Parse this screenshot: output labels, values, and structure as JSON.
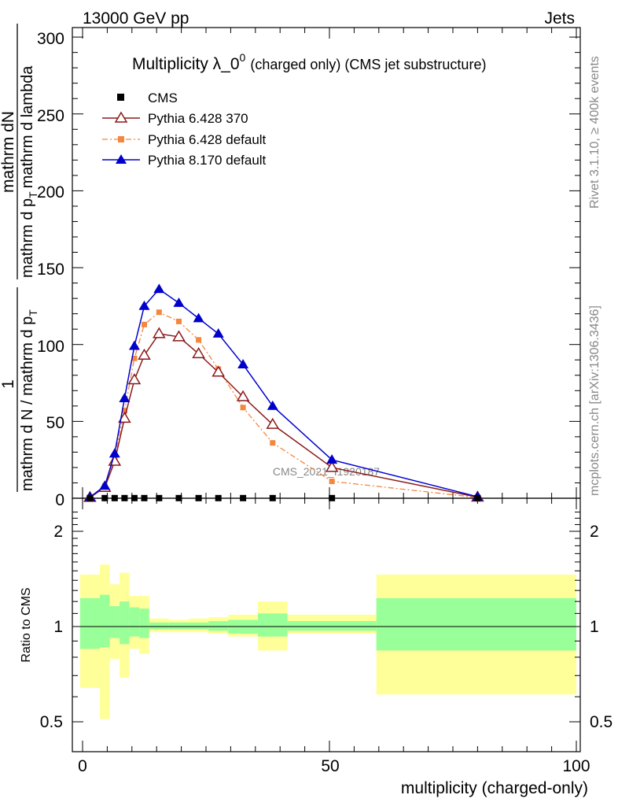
{
  "header": {
    "left": "13000 GeV pp",
    "right": "Jets"
  },
  "right_labels": {
    "top": "Rivet 3.1.10, ≥ 400k events",
    "bottom": "mcplots.cern.ch [arXiv:1306.3436]"
  },
  "main_panel": {
    "title_main": "Multiplicity λ_0",
    "title_sup": "0",
    "title_sub": "(charged only) (CMS jet substructure)",
    "ylabel_numerator": "mathrm dN",
    "ylabel_denominator": "mathrm d p",
    "ylabel_subscript": "T",
    "ylabel_tail": "mathrm d lambda",
    "ylabel_prefactor_num": "1",
    "ylabel_prefactor_den": "mathrm d N / mathrm d p",
    "watermark": "CMS_2021_I1920187",
    "yticks": [
      "0",
      "50",
      "100",
      "150",
      "200",
      "250",
      "300"
    ]
  },
  "ratio_panel": {
    "ylabel": "Ratio to CMS",
    "yticks": [
      "0.5",
      "1",
      "2"
    ]
  },
  "x_axis": {
    "label": "multiplicity (charged-only)",
    "ticks": [
      "0",
      "50",
      "100"
    ]
  },
  "legend": [
    {
      "label": "CMS",
      "color": "#000000",
      "marker": "square",
      "line": "none"
    },
    {
      "label": "Pythia 6.428 370",
      "color": "#8b1a1a",
      "marker": "open-triangle",
      "line": "solid"
    },
    {
      "label": "Pythia 6.428 default",
      "color": "#f4863d",
      "marker": "square",
      "line": "dashdot"
    },
    {
      "label": "Pythia 8.170 default",
      "color": "#0000cc",
      "marker": "triangle",
      "line": "solid"
    }
  ],
  "chart_data": [
    {
      "type": "line",
      "panel": "main",
      "xlim": [
        -2,
        100
      ],
      "ylim": [
        0,
        305
      ],
      "x": [
        1.5,
        4.5,
        6.5,
        8.5,
        10.5,
        12.5,
        15.5,
        19.5,
        23.5,
        27.5,
        32.5,
        38.5,
        50.5,
        80
      ],
      "series": [
        {
          "name": "CMS",
          "color": "#000000",
          "values": [
            0.1,
            0.1,
            0.1,
            0.1,
            0.1,
            0.1,
            0.1,
            0.1,
            0.1,
            0.1,
            0.1,
            0.1,
            0.1,
            0.1
          ]
        },
        {
          "name": "Pythia 6.428 370",
          "color": "#8b1a1a",
          "values": [
            0.5,
            7,
            24,
            52,
            77,
            93,
            107,
            105,
            94,
            82,
            66,
            48,
            20,
            0.7
          ]
        },
        {
          "name": "Pythia 6.428 default",
          "color": "#f4863d",
          "values": [
            0.6,
            8,
            27,
            57,
            91,
            113,
            121,
            115,
            103,
            84,
            59,
            36,
            11,
            0.5
          ]
        },
        {
          "name": "Pythia 8.170 default",
          "color": "#0000cc",
          "values": [
            0.7,
            8,
            29,
            65,
            99,
            125,
            136,
            127,
            117,
            107,
            87,
            60,
            25,
            1
          ]
        }
      ]
    },
    {
      "type": "area",
      "panel": "ratio",
      "ylim": [
        0.44,
        2.35
      ],
      "scale": "log",
      "reference": 1,
      "bins": [
        [
          -0.5,
          3.5
        ],
        [
          3.5,
          5.5
        ],
        [
          5.5,
          7.5
        ],
        [
          7.5,
          9.5
        ],
        [
          9.5,
          11.5
        ],
        [
          11.5,
          13.5
        ],
        [
          13.5,
          17.5
        ],
        [
          17.5,
          21.5
        ],
        [
          21.5,
          25.5
        ],
        [
          25.5,
          29.5
        ],
        [
          29.5,
          35.5
        ],
        [
          35.5,
          41.5
        ],
        [
          41.5,
          59.5
        ],
        [
          59.5,
          100
        ]
      ],
      "green_band": [
        [
          0.85,
          1.23
        ],
        [
          0.86,
          1.26
        ],
        [
          0.92,
          1.16
        ],
        [
          0.88,
          1.2
        ],
        [
          0.93,
          1.15
        ],
        [
          0.92,
          1.14
        ],
        [
          0.98,
          1.03
        ],
        [
          0.98,
          1.03
        ],
        [
          0.98,
          1.03
        ],
        [
          0.97,
          1.04
        ],
        [
          0.95,
          1.05
        ],
        [
          0.93,
          1.1
        ],
        [
          0.97,
          1.04
        ],
        [
          0.84,
          1.23
        ]
      ],
      "yellow_band": [
        [
          0.64,
          1.46
        ],
        [
          0.51,
          1.57
        ],
        [
          0.79,
          1.36
        ],
        [
          0.69,
          1.48
        ],
        [
          0.85,
          1.25
        ],
        [
          0.82,
          1.25
        ],
        [
          0.96,
          1.06
        ],
        [
          0.96,
          1.05
        ],
        [
          0.96,
          1.06
        ],
        [
          0.95,
          1.07
        ],
        [
          0.93,
          1.09
        ],
        [
          0.84,
          1.2
        ],
        [
          0.95,
          1.09
        ],
        [
          0.61,
          1.46
        ]
      ]
    }
  ]
}
